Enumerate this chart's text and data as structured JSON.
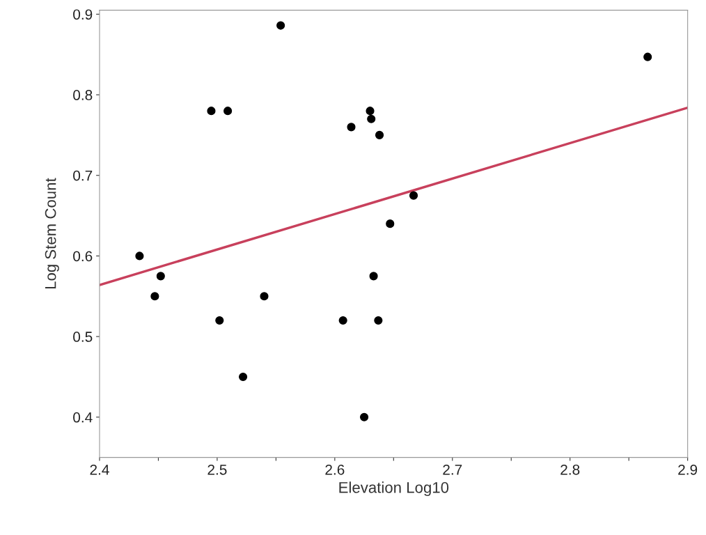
{
  "chart_data": {
    "type": "scatter",
    "xlabel": "Elevation Log10",
    "ylabel": "Log Stem Count",
    "grid": false,
    "xlim": [
      2.4,
      2.9
    ],
    "ylim": [
      0.35,
      0.905
    ],
    "xticks": [
      2.4,
      {
        "value": 2.45,
        "label": null
      },
      2.5,
      {
        "value": 2.55,
        "label": null
      },
      2.6,
      {
        "value": 2.65,
        "label": null
      },
      2.7,
      {
        "value": 2.75,
        "label": null
      },
      2.8,
      {
        "value": 2.85,
        "label": null
      },
      2.9
    ],
    "yticks": [
      0.4,
      0.5,
      0.6,
      0.7,
      0.8,
      0.9
    ],
    "series": [
      {
        "marker": "circle",
        "color": "#000000",
        "x": [
          2.434,
          2.447,
          2.452,
          2.495,
          2.509,
          2.502,
          2.522,
          2.54,
          2.554,
          2.607,
          2.614,
          2.625,
          2.63,
          2.631,
          2.638,
          2.633,
          2.637,
          2.647,
          2.667,
          2.866
        ],
        "values": [
          0.6,
          0.55,
          0.575,
          0.78,
          0.78,
          0.52,
          0.45,
          0.55,
          0.886,
          0.52,
          0.76,
          0.4,
          0.78,
          0.77,
          0.75,
          0.575,
          0.52,
          0.64,
          0.675,
          0.847
        ]
      },
      {
        "type": "line",
        "marker": "none",
        "color": "#c8405c",
        "x": [
          2.4,
          2.9
        ],
        "values": [
          0.564,
          0.784
        ]
      }
    ]
  }
}
